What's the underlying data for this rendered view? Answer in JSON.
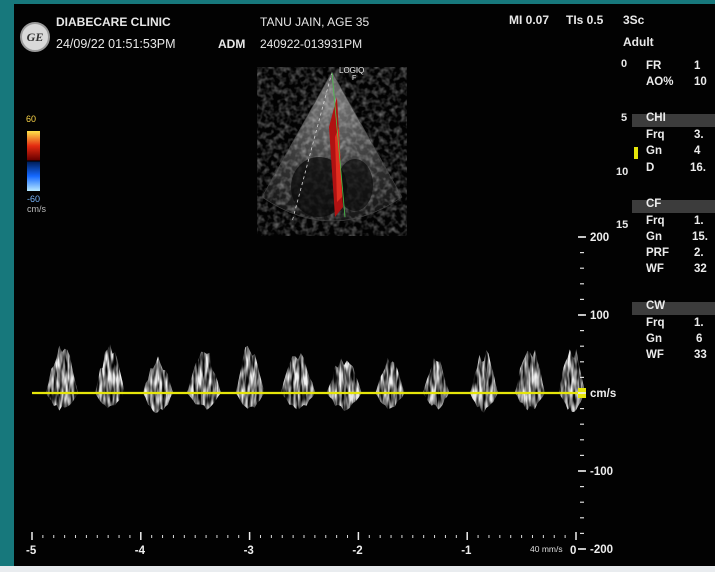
{
  "header": {
    "clinic": "DIABECARE CLINIC",
    "datetime": "24/09/22 01:51:53PM",
    "operator": "ADM",
    "patient": "TANU JAIN, AGE 35",
    "exam_id": "240922-013931PM",
    "mi": "MI 0.07",
    "tis": "TIs 0.5",
    "probe": "3Sc",
    "preset": "Adult",
    "logo_text": "GE"
  },
  "image_label": "LOGIQ",
  "image_sublabel": "F",
  "color_scale": {
    "top": "60",
    "bottom": "-60",
    "unit": "cm/s"
  },
  "depth_scale": [
    "0",
    "5",
    "10",
    "15"
  ],
  "velocity_scale": {
    "ticks": [
      "200",
      "100",
      "cm/s",
      "-100",
      "-200"
    ],
    "top_cms": 200,
    "bottom_cms": -200
  },
  "time_scale": {
    "ticks": [
      "-5",
      "-4",
      "-3",
      "-2",
      "-1",
      "0"
    ],
    "sweep": "40 mm/s"
  },
  "params": {
    "general": [
      {
        "label": "FR",
        "value": "1"
      },
      {
        "label": "AO%",
        "value": "10"
      }
    ],
    "chi": {
      "title": "CHI",
      "items": [
        {
          "label": "Frq",
          "value": "3."
        },
        {
          "label": "Gn",
          "value": "4"
        },
        {
          "label": "D",
          "value": "16."
        }
      ]
    },
    "cf": {
      "title": "CF",
      "items": [
        {
          "label": "Frq",
          "value": "1."
        },
        {
          "label": "Gn",
          "value": "15."
        },
        {
          "label": "PRF",
          "value": "2."
        },
        {
          "label": "WF",
          "value": "32"
        }
      ]
    },
    "cw": {
      "title": "CW",
      "items": [
        {
          "label": "Frq",
          "value": "1."
        },
        {
          "label": "Gn",
          "value": "6"
        },
        {
          "label": "WF",
          "value": "33"
        }
      ]
    }
  },
  "colors": {
    "baseline": "#e6e60a",
    "background": "#020202",
    "frame": "#17787c"
  }
}
